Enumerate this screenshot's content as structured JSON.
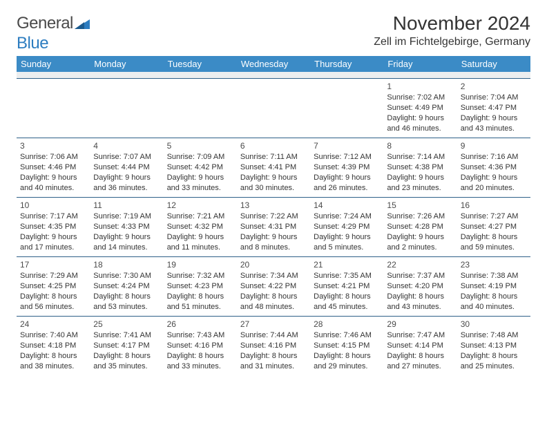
{
  "logo": {
    "general": "General",
    "blue": "Blue"
  },
  "title": "November 2024",
  "location": "Zell im Fichtelgebirge, Germany",
  "colors": {
    "header_bg": "#3b8bc6",
    "header_text": "#ffffff",
    "spacer_bg": "#eceeef",
    "cell_border": "#2d5f88",
    "text": "#333333",
    "logo_gray": "#4a4a4a",
    "logo_blue": "#2d7dc0"
  },
  "day_headers": [
    "Sunday",
    "Monday",
    "Tuesday",
    "Wednesday",
    "Thursday",
    "Friday",
    "Saturday"
  ],
  "weeks": [
    [
      null,
      null,
      null,
      null,
      null,
      {
        "n": "1",
        "sr": "Sunrise: 7:02 AM",
        "ss": "Sunset: 4:49 PM",
        "dl": "Daylight: 9 hours and 46 minutes."
      },
      {
        "n": "2",
        "sr": "Sunrise: 7:04 AM",
        "ss": "Sunset: 4:47 PM",
        "dl": "Daylight: 9 hours and 43 minutes."
      }
    ],
    [
      {
        "n": "3",
        "sr": "Sunrise: 7:06 AM",
        "ss": "Sunset: 4:46 PM",
        "dl": "Daylight: 9 hours and 40 minutes."
      },
      {
        "n": "4",
        "sr": "Sunrise: 7:07 AM",
        "ss": "Sunset: 4:44 PM",
        "dl": "Daylight: 9 hours and 36 minutes."
      },
      {
        "n": "5",
        "sr": "Sunrise: 7:09 AM",
        "ss": "Sunset: 4:42 PM",
        "dl": "Daylight: 9 hours and 33 minutes."
      },
      {
        "n": "6",
        "sr": "Sunrise: 7:11 AM",
        "ss": "Sunset: 4:41 PM",
        "dl": "Daylight: 9 hours and 30 minutes."
      },
      {
        "n": "7",
        "sr": "Sunrise: 7:12 AM",
        "ss": "Sunset: 4:39 PM",
        "dl": "Daylight: 9 hours and 26 minutes."
      },
      {
        "n": "8",
        "sr": "Sunrise: 7:14 AM",
        "ss": "Sunset: 4:38 PM",
        "dl": "Daylight: 9 hours and 23 minutes."
      },
      {
        "n": "9",
        "sr": "Sunrise: 7:16 AM",
        "ss": "Sunset: 4:36 PM",
        "dl": "Daylight: 9 hours and 20 minutes."
      }
    ],
    [
      {
        "n": "10",
        "sr": "Sunrise: 7:17 AM",
        "ss": "Sunset: 4:35 PM",
        "dl": "Daylight: 9 hours and 17 minutes."
      },
      {
        "n": "11",
        "sr": "Sunrise: 7:19 AM",
        "ss": "Sunset: 4:33 PM",
        "dl": "Daylight: 9 hours and 14 minutes."
      },
      {
        "n": "12",
        "sr": "Sunrise: 7:21 AM",
        "ss": "Sunset: 4:32 PM",
        "dl": "Daylight: 9 hours and 11 minutes."
      },
      {
        "n": "13",
        "sr": "Sunrise: 7:22 AM",
        "ss": "Sunset: 4:31 PM",
        "dl": "Daylight: 9 hours and 8 minutes."
      },
      {
        "n": "14",
        "sr": "Sunrise: 7:24 AM",
        "ss": "Sunset: 4:29 PM",
        "dl": "Daylight: 9 hours and 5 minutes."
      },
      {
        "n": "15",
        "sr": "Sunrise: 7:26 AM",
        "ss": "Sunset: 4:28 PM",
        "dl": "Daylight: 9 hours and 2 minutes."
      },
      {
        "n": "16",
        "sr": "Sunrise: 7:27 AM",
        "ss": "Sunset: 4:27 PM",
        "dl": "Daylight: 8 hours and 59 minutes."
      }
    ],
    [
      {
        "n": "17",
        "sr": "Sunrise: 7:29 AM",
        "ss": "Sunset: 4:25 PM",
        "dl": "Daylight: 8 hours and 56 minutes."
      },
      {
        "n": "18",
        "sr": "Sunrise: 7:30 AM",
        "ss": "Sunset: 4:24 PM",
        "dl": "Daylight: 8 hours and 53 minutes."
      },
      {
        "n": "19",
        "sr": "Sunrise: 7:32 AM",
        "ss": "Sunset: 4:23 PM",
        "dl": "Daylight: 8 hours and 51 minutes."
      },
      {
        "n": "20",
        "sr": "Sunrise: 7:34 AM",
        "ss": "Sunset: 4:22 PM",
        "dl": "Daylight: 8 hours and 48 minutes."
      },
      {
        "n": "21",
        "sr": "Sunrise: 7:35 AM",
        "ss": "Sunset: 4:21 PM",
        "dl": "Daylight: 8 hours and 45 minutes."
      },
      {
        "n": "22",
        "sr": "Sunrise: 7:37 AM",
        "ss": "Sunset: 4:20 PM",
        "dl": "Daylight: 8 hours and 43 minutes."
      },
      {
        "n": "23",
        "sr": "Sunrise: 7:38 AM",
        "ss": "Sunset: 4:19 PM",
        "dl": "Daylight: 8 hours and 40 minutes."
      }
    ],
    [
      {
        "n": "24",
        "sr": "Sunrise: 7:40 AM",
        "ss": "Sunset: 4:18 PM",
        "dl": "Daylight: 8 hours and 38 minutes."
      },
      {
        "n": "25",
        "sr": "Sunrise: 7:41 AM",
        "ss": "Sunset: 4:17 PM",
        "dl": "Daylight: 8 hours and 35 minutes."
      },
      {
        "n": "26",
        "sr": "Sunrise: 7:43 AM",
        "ss": "Sunset: 4:16 PM",
        "dl": "Daylight: 8 hours and 33 minutes."
      },
      {
        "n": "27",
        "sr": "Sunrise: 7:44 AM",
        "ss": "Sunset: 4:16 PM",
        "dl": "Daylight: 8 hours and 31 minutes."
      },
      {
        "n": "28",
        "sr": "Sunrise: 7:46 AM",
        "ss": "Sunset: 4:15 PM",
        "dl": "Daylight: 8 hours and 29 minutes."
      },
      {
        "n": "29",
        "sr": "Sunrise: 7:47 AM",
        "ss": "Sunset: 4:14 PM",
        "dl": "Daylight: 8 hours and 27 minutes."
      },
      {
        "n": "30",
        "sr": "Sunrise: 7:48 AM",
        "ss": "Sunset: 4:13 PM",
        "dl": "Daylight: 8 hours and 25 minutes."
      }
    ]
  ]
}
